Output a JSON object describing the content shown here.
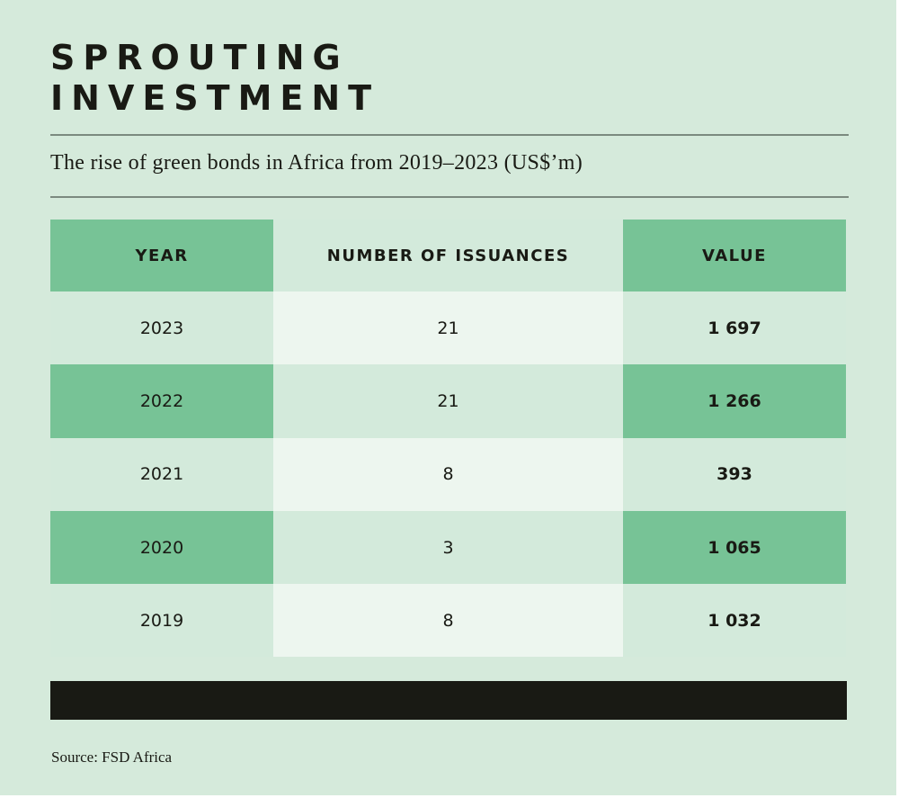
{
  "title_lines": [
    "SPROUTING",
    "INVESTMENT"
  ],
  "subtitle": "The rise of green bonds in Africa from 2019–2023 (US$’m)",
  "source": "Source: FSD Africa",
  "colors": {
    "background": "#d5eadb",
    "accent_green": "#77c396",
    "light_cell": "#edf6ef",
    "text": "#191a14",
    "footer_bar": "#191a14"
  },
  "chart_data": {
    "type": "table",
    "title": "SPROUTING INVESTMENT",
    "subtitle": "The rise of green bonds in Africa from 2019–2023 (US$’m)",
    "columns": [
      "YEAR",
      "NUMBER OF ISSUANCES",
      "VALUE"
    ],
    "rows": [
      {
        "year": "2023",
        "issuances": "21",
        "value": "1 697"
      },
      {
        "year": "2022",
        "issuances": "21",
        "value": "1 266"
      },
      {
        "year": "2021",
        "issuances": "8",
        "value": "393"
      },
      {
        "year": "2020",
        "issuances": "3",
        "value": "1 065"
      },
      {
        "year": "2019",
        "issuances": "8",
        "value": "1 032"
      }
    ],
    "units": "US$’m",
    "source": "Source: FSD Africa"
  }
}
